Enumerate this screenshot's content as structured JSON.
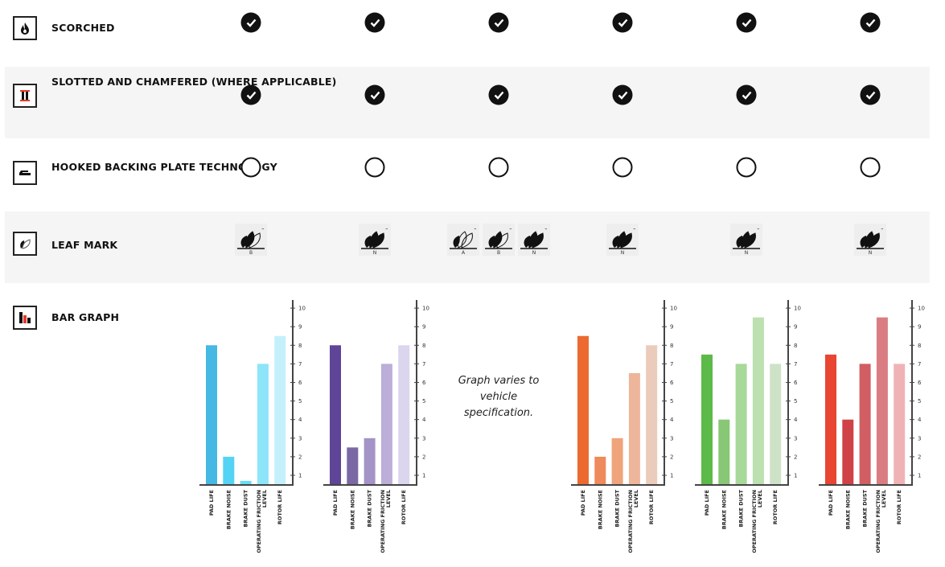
{
  "rows": [
    {
      "label": "SCORCHED",
      "icon": "flame-icon",
      "cells": [
        "check",
        "check",
        "check",
        "check",
        "check",
        "check"
      ]
    },
    {
      "label": "SLOTTED AND CHAMFERED (WHERE APPLICABLE)",
      "icon": "slotted-rotor-icon",
      "cells": [
        "check",
        "check",
        "check",
        "check",
        "check",
        "check"
      ]
    },
    {
      "label": "HOOKED BACKING PLATE TECHNOLOGY",
      "icon": "backing-plate-icon",
      "cells": [
        "empty",
        "empty",
        "empty",
        "empty",
        "empty",
        "empty"
      ]
    },
    {
      "label": "LEAF MARK",
      "icon": "leaf-icon",
      "cells": [
        [
          "B"
        ],
        [
          "N"
        ],
        [
          "A",
          "B",
          "N"
        ],
        [
          "N"
        ],
        [
          "N"
        ],
        [
          "N"
        ]
      ]
    },
    {
      "label": "BAR GRAPH",
      "icon": "bar-graph-icon"
    }
  ],
  "note": "Graph varies to vehicle specification.",
  "chart_data": [
    {
      "type": "bar",
      "categories": [
        "PAD LIFE",
        "BRAKE NOISE",
        "BRAKE DUST",
        "OPERATING FRICTION LEVEL",
        "ROTOR LIFE"
      ],
      "values": [
        8,
        2,
        0.7,
        7,
        8.5
      ],
      "colors": [
        "#45b8e4",
        "#55d3f5",
        "#6adcf7",
        "#8ce5f9",
        "#c4f0fb"
      ],
      "ylim": [
        0.5,
        10
      ],
      "yticks": [
        1,
        2,
        3,
        4,
        5,
        6,
        7,
        8,
        9,
        10
      ]
    },
    {
      "type": "bar",
      "categories": [
        "PAD LIFE",
        "BRAKE NOISE",
        "BRAKE DUST",
        "OPERATING FRICTION LEVEL",
        "ROTOR LIFE"
      ],
      "values": [
        8,
        2.5,
        3,
        7,
        8
      ],
      "colors": [
        "#5e4598",
        "#7a68a4",
        "#a393c6",
        "#bbaed8",
        "#dcd5ee"
      ],
      "ylim": [
        0.5,
        10
      ],
      "yticks": [
        1,
        2,
        3,
        4,
        5,
        6,
        7,
        8,
        9,
        10
      ]
    },
    null,
    {
      "type": "bar",
      "categories": [
        "PAD LIFE",
        "BRAKE NOISE",
        "BRAKE DUST",
        "OPERATING FRICTION LEVEL",
        "ROTOR LIFE"
      ],
      "values": [
        8.5,
        2,
        3,
        6.5,
        8
      ],
      "colors": [
        "#ec6a30",
        "#ee8a5c",
        "#efa47c",
        "#edb69b",
        "#ebcbbb"
      ],
      "ylim": [
        0.5,
        10
      ],
      "yticks": [
        1,
        2,
        3,
        4,
        5,
        6,
        7,
        8,
        9,
        10
      ]
    },
    {
      "type": "bar",
      "categories": [
        "PAD LIFE",
        "BRAKE NOISE",
        "BRAKE DUST",
        "OPERATING FRICTION LEVEL",
        "ROTOR LIFE"
      ],
      "values": [
        7.5,
        4,
        7,
        9.5,
        7
      ],
      "colors": [
        "#5cba48",
        "#87c775",
        "#a8d89a",
        "#bce0b0",
        "#cee2c8"
      ],
      "ylim": [
        0.5,
        10
      ],
      "yticks": [
        1,
        2,
        3,
        4,
        5,
        6,
        7,
        8,
        9,
        10
      ]
    },
    {
      "type": "bar",
      "categories": [
        "PAD LIFE",
        "BRAKE NOISE",
        "BRAKE DUST",
        "OPERATING FRICTION LEVEL",
        "ROTOR LIFE"
      ],
      "values": [
        7.5,
        4,
        7,
        9.5,
        7
      ],
      "colors": [
        "#e84532",
        "#cf4348",
        "#d05e62",
        "#da7d82",
        "#efb3b6"
      ],
      "ylim": [
        0.5,
        10
      ],
      "yticks": [
        1,
        2,
        3,
        4,
        5,
        6,
        7,
        8,
        9,
        10
      ]
    }
  ]
}
